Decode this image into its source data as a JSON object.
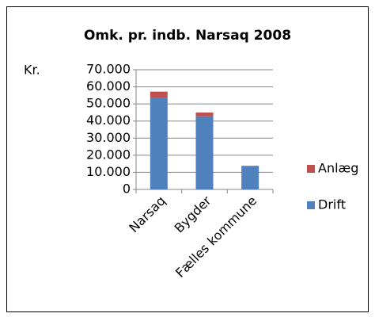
{
  "chart_data": {
    "type": "bar",
    "stacked": true,
    "title": "Omk. pr. indb. Narsaq 2008",
    "y_label": "Kr.",
    "categories": [
      "Narsaq",
      "Bygder",
      "Fælles kommune"
    ],
    "series": [
      {
        "name": "Drift",
        "color": "#4f81bd",
        "values": [
          53500,
          42800,
          13800
        ]
      },
      {
        "name": "Anlæg",
        "color": "#c0504d",
        "values": [
          3700,
          2200,
          0
        ]
      }
    ],
    "ylim": [
      0,
      70000
    ],
    "yticks": [
      0,
      {
        "value": 10000,
        "label": "10.000"
      },
      {
        "value": 20000,
        "label": "20.000"
      },
      {
        "value": 30000,
        "label": "30.000"
      },
      {
        "value": 40000,
        "label": "40.000"
      },
      {
        "value": 50000,
        "label": "50.000"
      },
      {
        "value": 60000,
        "label": "60.000"
      },
      {
        "value": 70000,
        "label": "70.000"
      }
    ],
    "grid": true,
    "legend": "right"
  }
}
